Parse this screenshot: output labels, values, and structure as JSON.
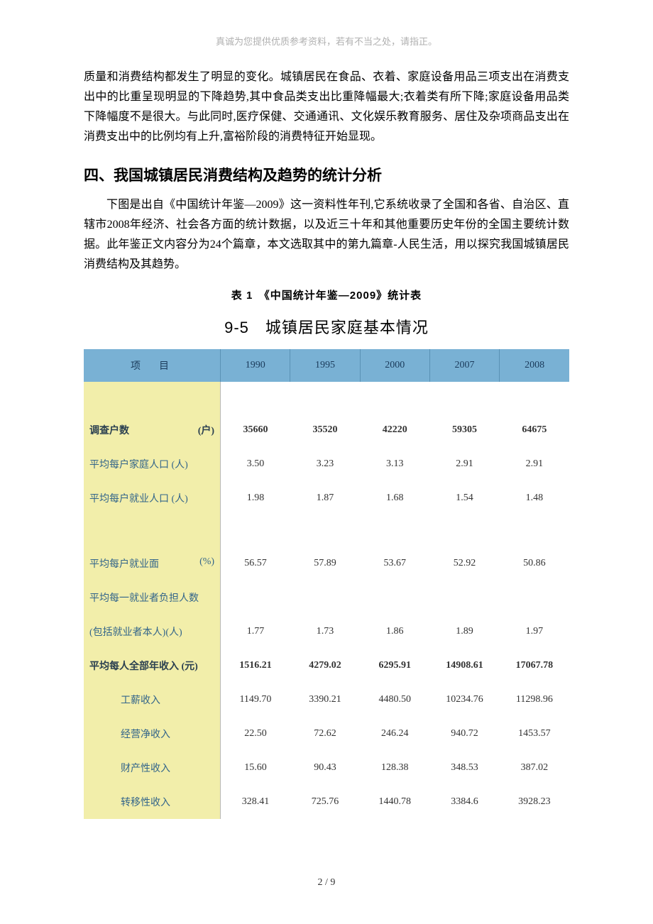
{
  "header_note": "真诚为您提供优质参考资料，若有不当之处，请指正。",
  "body_paragraph": "质量和消费结构都发生了明显的变化。城镇居民在食品、衣着、家庭设备用品三项支出在消费支出中的比重呈现明显的下降趋势,其中食品类支出比重降幅最大;衣着类有所下降;家庭设备用品类下降幅度不是很大。与此同时,医疗保健、交通通讯、文化娱乐教育服务、居住及杂项商品支出在消费支出中的比例均有上升,富裕阶段的消费特征开始显现。",
  "section_heading": "四、我国城镇居民消费结构及趋势的统计分析",
  "intro_paragraph": "下图是出自《中国统计年鉴—2009》这一资料性年刊,它系统收录了全国和各省、自治区、直辖市2008年经济、社会各方面的统计数据，以及近三十年和其他重要历史年份的全国主要统计数据。此年鉴正文内容分为24个篇章，本文选取其中的第九篇章-人民生活，用以探究我国城镇居民消费结构及其趋势。",
  "table_caption": "表 1　《中国统计年鉴—2009》统计表",
  "table_title": "9-5　城镇居民家庭基本情况",
  "table": {
    "header_label_main": "项",
    "header_label_sub": "目",
    "years": [
      "1990",
      "1995",
      "2000",
      "2007",
      "2008"
    ],
    "rows": [
      {
        "label_main": "调查户数",
        "label_unit": "(户)",
        "spread": true,
        "bold": true,
        "indent": false,
        "values": [
          "35660",
          "35520",
          "42220",
          "59305",
          "64675"
        ]
      },
      {
        "label_main": "平均每户家庭人口 (人)",
        "label_unit": "",
        "spread": false,
        "bold": false,
        "indent": false,
        "values": [
          "3.50",
          "3.23",
          "3.13",
          "2.91",
          "2.91"
        ]
      },
      {
        "label_main": "平均每户就业人口 (人)",
        "label_unit": "",
        "spread": false,
        "bold": false,
        "indent": false,
        "values": [
          "1.98",
          "1.87",
          "1.68",
          "1.54",
          "1.48"
        ]
      }
    ],
    "rows2": [
      {
        "label_main": "平均每户就业面",
        "label_unit": "(%)",
        "spread": true,
        "bold": false,
        "indent": false,
        "values": [
          "56.57",
          "57.89",
          "53.67",
          "52.92",
          "50.86"
        ]
      },
      {
        "label_main": "平均每一就业者负担人数",
        "label_unit": "",
        "spread": false,
        "bold": false,
        "indent": false,
        "values": [
          "",
          "",
          "",
          "",
          ""
        ]
      },
      {
        "label_main": "(包括就业者本人)(人)",
        "label_unit": "",
        "spread": false,
        "bold": false,
        "indent": false,
        "values": [
          "1.77",
          "1.73",
          "1.86",
          "1.89",
          "1.97"
        ]
      },
      {
        "label_main": "平均每人全部年收入 (元)",
        "label_unit": "",
        "spread": false,
        "bold": true,
        "indent": false,
        "values": [
          "1516.21",
          "4279.02",
          "6295.91",
          "14908.61",
          "17067.78"
        ]
      },
      {
        "label_main": "工薪收入",
        "label_unit": "",
        "spread": false,
        "bold": false,
        "indent": true,
        "values": [
          "1149.70",
          "3390.21",
          "4480.50",
          "10234.76",
          "11298.96"
        ]
      },
      {
        "label_main": "经营净收入",
        "label_unit": "",
        "spread": false,
        "bold": false,
        "indent": true,
        "values": [
          "22.50",
          "72.62",
          "246.24",
          "940.72",
          "1453.57"
        ]
      },
      {
        "label_main": "财产性收入",
        "label_unit": "",
        "spread": false,
        "bold": false,
        "indent": true,
        "values": [
          "15.60",
          "90.43",
          "128.38",
          "348.53",
          "387.02"
        ]
      },
      {
        "label_main": "转移性收入",
        "label_unit": "",
        "spread": false,
        "bold": false,
        "indent": true,
        "values": [
          "328.41",
          "725.76",
          "1440.78",
          "3384.6",
          "3928.23"
        ]
      }
    ]
  },
  "footer": "2 / 9",
  "colors": {
    "header_bg": "#79b1d4",
    "label_bg": "#f2eeaa",
    "label_text": "#33658a",
    "header_note_color": "#b0b0b0"
  }
}
